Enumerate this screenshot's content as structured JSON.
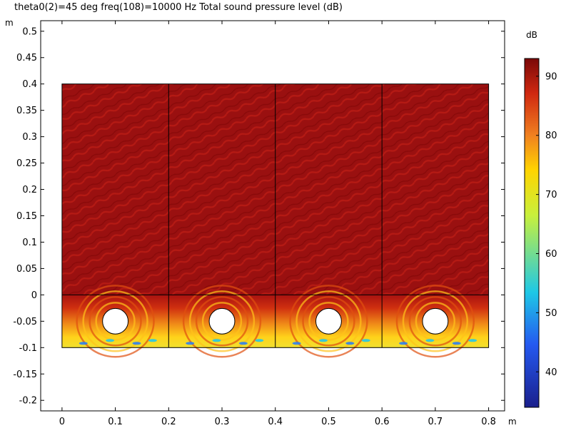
{
  "chart_data": {
    "type": "heatmap",
    "title": "theta0(2)=45 deg freq(108)=10000 Hz  Total sound pressure level (dB)",
    "x_unit": "m",
    "y_unit": "m",
    "colorbar_unit": "dB",
    "xlim": [
      -0.04,
      0.83
    ],
    "ylim": [
      -0.22,
      0.52
    ],
    "x_ticks": [
      0,
      0.1,
      0.2,
      0.3,
      0.4,
      0.5,
      0.6,
      0.7,
      0.8
    ],
    "x_tick_labels": [
      "0",
      "0.1",
      "0.2",
      "0.3",
      "0.4",
      "0.5",
      "0.6",
      "0.7",
      "0.8"
    ],
    "y_ticks": [
      0.5,
      0.45,
      0.4,
      0.35,
      0.3,
      0.25,
      0.2,
      0.15,
      0.1,
      0.05,
      0,
      -0.05,
      -0.1,
      -0.15,
      -0.2
    ],
    "y_tick_labels": [
      "0.5",
      "0.45",
      "0.4",
      "0.35",
      "0.3",
      "0.25",
      "0.2",
      "0.15",
      "0.1",
      "0.05",
      "0",
      "-0.05",
      "-0.1",
      "-0.15",
      "-0.2"
    ],
    "colorbar": {
      "range": [
        34,
        93
      ],
      "ticks": [
        40,
        50,
        60,
        70,
        80,
        90
      ],
      "tick_labels": [
        "40",
        "50",
        "60",
        "70",
        "80",
        "90"
      ],
      "colormap": [
        "#1a1f8c",
        "#2459f0",
        "#1ec8e6",
        "#c8f03c",
        "#ffd400",
        "#f08020",
        "#d02810",
        "#7a0808"
      ]
    },
    "domain": {
      "x_range": [
        0,
        0.8
      ],
      "upper_region": {
        "y_range": [
          0,
          0.4
        ],
        "level_db": 91
      },
      "lower_region": {
        "y_range": [
          -0.1,
          0
        ],
        "level_db_range": [
          50,
          91
        ]
      },
      "vertical_dividers_x": [
        0.2,
        0.4,
        0.6
      ],
      "cylinders": [
        {
          "cx": 0.1,
          "cy": -0.05,
          "r": 0.024
        },
        {
          "cx": 0.3,
          "cy": -0.05,
          "r": 0.024
        },
        {
          "cx": 0.5,
          "cy": -0.05,
          "r": 0.024
        },
        {
          "cx": 0.7,
          "cy": -0.05,
          "r": 0.024
        }
      ]
    },
    "grid": false,
    "legend": "colorbar-right"
  }
}
